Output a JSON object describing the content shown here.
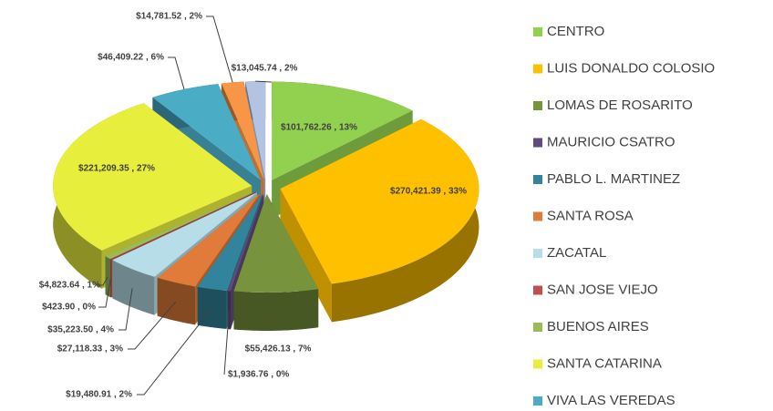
{
  "chart_data": {
    "type": "pie",
    "categories": [
      "CENTRO",
      "LUIS DONALDO COLOSIO",
      "LOMAS DE ROSARITO",
      "MAURICIO CSATRO",
      "PABLO L. MARTINEZ",
      "SANTA ROSA",
      "ZACATAL",
      "SAN JOSE VIEJO",
      "BUENOS AIRES",
      "SANTA CATARINA",
      "VIVA LAS VEREDAS",
      null,
      null
    ],
    "values": [
      101762.26,
      270421.39,
      55426.13,
      1936.76,
      19480.91,
      27118.33,
      35223.5,
      423.9,
      4823.64,
      221209.35,
      46409.22,
      14781.52,
      13045.74
    ],
    "value_labels": [
      "$101,762.26 , 13%",
      "$270,421.39 , 33%",
      "$55,426.13 , 7%",
      "$1,936.76 , 0%",
      "$19,480.91 , 2%",
      "$27,118.33 , 3%",
      "$35,223.50 , 4%",
      "$423.90 , 0%",
      "$4,823.64 , 1%",
      "$221,209.35 , 27%",
      "$46,409.22 , 6%",
      "$14,781.52 , 2%",
      "$13,045.74 , 2%"
    ],
    "colors": [
      "#92d050",
      "#ffc000",
      "#77933c",
      "#604a7b",
      "#31849b",
      "#e07b39",
      "#b7dee8",
      "#c0504d",
      "#9bbb59",
      "#e8ee3c",
      "#4bacc6",
      "#f79646",
      "#b3c3e2"
    ]
  }
}
